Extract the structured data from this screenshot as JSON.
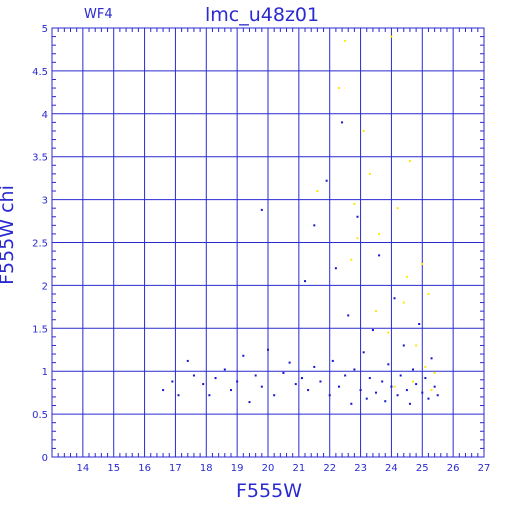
{
  "panel_label": "WF4",
  "chart_data": {
    "type": "scatter",
    "title": "lmc_u48z01",
    "xlabel": "F555W",
    "ylabel": "F555W  chi",
    "xlim": [
      13,
      27
    ],
    "ylim": [
      0,
      5
    ],
    "x_ticks": [
      14,
      15,
      16,
      17,
      18,
      19,
      20,
      21,
      22,
      23,
      24,
      25,
      26,
      27
    ],
    "y_ticks": [
      0,
      0.5,
      1,
      1.5,
      2,
      2.5,
      3,
      3.5,
      4,
      4.5,
      5
    ],
    "y_tick_labels": [
      "0",
      "0.5",
      "1",
      "1.5",
      "2",
      "2.5",
      "3",
      "3.5",
      "4",
      "4.5",
      "5"
    ],
    "grid": true,
    "colors": {
      "axes": "#2a2ad0",
      "series_main": "#1414d0",
      "series_flagged": "#ffe800"
    },
    "series": [
      {
        "color": "#1414d0",
        "values": [
          [
            16.6,
            0.78
          ],
          [
            16.9,
            0.88
          ],
          [
            17.1,
            0.72
          ],
          [
            17.4,
            1.12
          ],
          [
            17.6,
            0.95
          ],
          [
            17.9,
            0.85
          ],
          [
            18.1,
            0.72
          ],
          [
            18.3,
            0.92
          ],
          [
            18.6,
            1.02
          ],
          [
            18.8,
            0.78
          ],
          [
            19.0,
            0.88
          ],
          [
            19.2,
            1.18
          ],
          [
            19.4,
            0.64
          ],
          [
            19.6,
            0.95
          ],
          [
            19.8,
            0.82
          ],
          [
            20.0,
            1.25
          ],
          [
            20.2,
            0.72
          ],
          [
            20.5,
            0.98
          ],
          [
            20.7,
            1.1
          ],
          [
            20.9,
            0.85
          ],
          [
            19.8,
            2.88
          ],
          [
            21.1,
            0.92
          ],
          [
            21.2,
            2.05
          ],
          [
            21.3,
            0.78
          ],
          [
            21.5,
            1.05
          ],
          [
            21.5,
            2.7
          ],
          [
            21.7,
            0.88
          ],
          [
            21.9,
            3.22
          ],
          [
            22.0,
            0.72
          ],
          [
            22.1,
            1.12
          ],
          [
            22.2,
            2.2
          ],
          [
            22.3,
            0.82
          ],
          [
            22.4,
            3.9
          ],
          [
            22.5,
            0.95
          ],
          [
            22.6,
            1.65
          ],
          [
            22.7,
            0.62
          ],
          [
            22.8,
            1.02
          ],
          [
            22.9,
            2.8
          ],
          [
            23.0,
            0.78
          ],
          [
            23.1,
            1.22
          ],
          [
            23.2,
            0.68
          ],
          [
            23.3,
            0.92
          ],
          [
            23.4,
            1.48
          ],
          [
            23.5,
            0.75
          ],
          [
            23.6,
            2.35
          ],
          [
            23.7,
            0.88
          ],
          [
            23.8,
            0.65
          ],
          [
            23.9,
            1.08
          ],
          [
            24.0,
            0.82
          ],
          [
            24.1,
            1.85
          ],
          [
            24.2,
            0.72
          ],
          [
            24.3,
            0.95
          ],
          [
            24.4,
            1.3
          ],
          [
            24.5,
            0.78
          ],
          [
            24.6,
            0.62
          ],
          [
            24.7,
            1.02
          ],
          [
            24.8,
            0.85
          ],
          [
            24.9,
            1.55
          ],
          [
            25.0,
            0.75
          ],
          [
            25.1,
            0.92
          ],
          [
            25.2,
            0.68
          ],
          [
            25.3,
            1.15
          ],
          [
            25.4,
            0.82
          ],
          [
            25.5,
            0.72
          ]
        ]
      },
      {
        "color": "#ffe800",
        "values": [
          [
            21.6,
            3.1
          ],
          [
            22.3,
            4.3
          ],
          [
            22.5,
            4.85
          ],
          [
            22.8,
            2.95
          ],
          [
            23.1,
            3.8
          ],
          [
            23.3,
            3.3
          ],
          [
            22.9,
            2.55
          ],
          [
            23.6,
            2.6
          ],
          [
            23.9,
            1.45
          ],
          [
            24.0,
            4.9
          ],
          [
            24.2,
            2.9
          ],
          [
            24.4,
            1.8
          ],
          [
            24.6,
            3.45
          ],
          [
            24.8,
            1.3
          ],
          [
            25.0,
            2.25
          ],
          [
            25.2,
            1.9
          ],
          [
            25.4,
            0.98
          ],
          [
            24.7,
            0.88
          ],
          [
            24.1,
            0.82
          ],
          [
            25.1,
            1.05
          ],
          [
            23.5,
            1.7
          ],
          [
            24.5,
            2.1
          ],
          [
            25.3,
            0.78
          ],
          [
            22.7,
            2.3
          ]
        ]
      }
    ]
  }
}
